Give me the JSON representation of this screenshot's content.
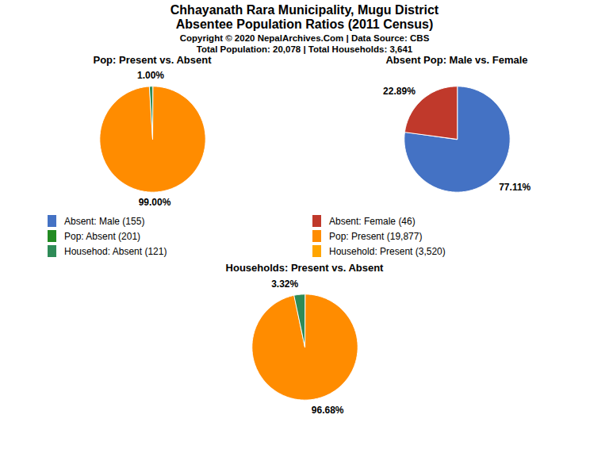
{
  "title": "Chhayanath Rara Municipality, Mugu District",
  "subtitle": "Absentee Population Ratios (2011 Census)",
  "annotations": [
    "Copyright © 2020 NepalArchives.Com | Data Source: CBS",
    "Total Population: 20,078 | Total Households: 3,641"
  ],
  "legend_items": [
    {
      "label": "Absent: Male (155)",
      "color": "#4472C4"
    },
    {
      "label": "Absent: Female (46)",
      "color": "#C0392B"
    },
    {
      "label": "Pop: Absent (201)",
      "color": "#228B22"
    },
    {
      "label": "Pop: Present (19,877)",
      "color": "#FF8C00"
    },
    {
      "label": "Househod: Absent (121)",
      "color": "#2E8B57"
    },
    {
      "label": "Household: Present (3,520)",
      "color": "#FFA500"
    }
  ],
  "chart_data": [
    {
      "type": "pie",
      "title": "Pop: Present vs. Absent",
      "values": [
        99.0,
        1.0
      ],
      "value_labels": [
        "99.00%",
        "1.00%"
      ],
      "colors": [
        "#FF8C00",
        "#2E8B57"
      ],
      "data_labels": true
    },
    {
      "type": "pie",
      "title": "Absent Pop: Male vs. Female",
      "values": [
        77.11,
        22.89
      ],
      "value_labels": [
        "77.11%",
        "22.89%"
      ],
      "colors": [
        "#4472C4",
        "#C0392B"
      ],
      "data_labels": true
    },
    {
      "type": "pie",
      "title": "Households: Present vs. Absent",
      "values": [
        96.68,
        3.32
      ],
      "value_labels": [
        "96.68%",
        "3.32%"
      ],
      "colors": [
        "#FF8C00",
        "#2E8B57"
      ],
      "data_labels": true
    }
  ]
}
